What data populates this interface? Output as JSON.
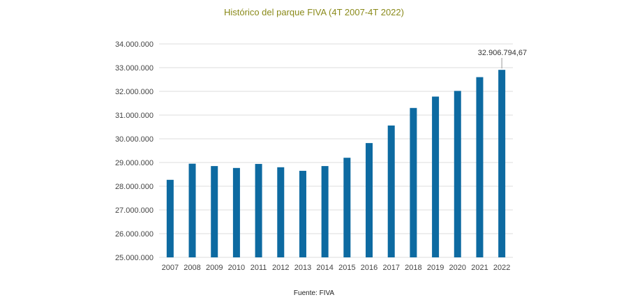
{
  "chart_data": {
    "type": "bar",
    "title": "Histórico del parque FIVA (4T 2007-4T 2022)",
    "source": "Fuente: FIVA",
    "categories": [
      "2007",
      "2008",
      "2009",
      "2010",
      "2011",
      "2012",
      "2013",
      "2014",
      "2015",
      "2016",
      "2017",
      "2018",
      "2019",
      "2020",
      "2021",
      "2022"
    ],
    "values": [
      28270000,
      28950000,
      28850000,
      28770000,
      28940000,
      28800000,
      28650000,
      28850000,
      29200000,
      29820000,
      30560000,
      31300000,
      31780000,
      32020000,
      32600000,
      32906794.67
    ],
    "ylim": [
      25000000,
      34000000
    ],
    "yticks": [
      "25.000.000",
      "26.000.000",
      "27.000.000",
      "28.000.000",
      "29.000.000",
      "30.000.000",
      "31.000.000",
      "32.000.000",
      "33.000.000",
      "34.000.000"
    ],
    "annotation": {
      "category": "2022",
      "text": "32.906.794,67"
    },
    "grid": true,
    "legend": "none",
    "colors": {
      "bar": "#0d6aa1",
      "title": "#8a8a1a",
      "grid": "#dddddd"
    }
  }
}
